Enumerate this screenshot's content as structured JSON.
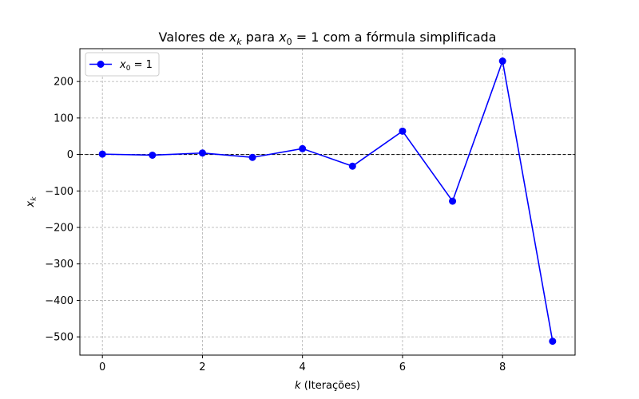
{
  "chart_data": {
    "type": "line",
    "title_parts": [
      "Valores de ",
      "x",
      "k",
      " para ",
      "x",
      "0",
      " = 1 com a fórmula simplificada"
    ],
    "xlabel_parts": [
      "k",
      " (Iterações)"
    ],
    "ylabel_parts": [
      "x",
      "k"
    ],
    "x": [
      0,
      1,
      2,
      3,
      4,
      5,
      6,
      7,
      8,
      9
    ],
    "series": [
      {
        "name_parts": [
          "x",
          "0",
          " = 1"
        ],
        "color": "#0000ff",
        "values": [
          1,
          -2,
          4,
          -8,
          16,
          -32,
          64,
          -128,
          256,
          -512
        ]
      }
    ],
    "xlim": [
      -0.45,
      9.45
    ],
    "ylim": [
      -550,
      290
    ],
    "xticks": [
      0,
      2,
      4,
      6,
      8
    ],
    "xtick_labels": [
      "0",
      "2",
      "4",
      "6",
      "8"
    ],
    "yticks": [
      -500,
      -400,
      -300,
      -200,
      -100,
      0,
      100,
      200
    ],
    "ytick_labels": [
      "−500",
      "−400",
      "−300",
      "−200",
      "−100",
      "0",
      "100",
      "200"
    ],
    "zero_line": true,
    "grid": true,
    "legend": "upper left"
  }
}
